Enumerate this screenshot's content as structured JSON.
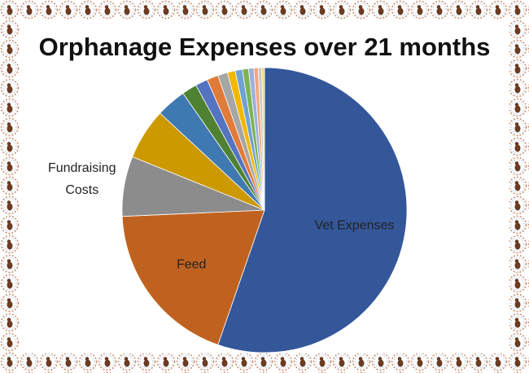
{
  "chart_data": {
    "type": "pie",
    "title": "Orphanage Expenses over 21 months",
    "categories": [
      "Vet Expenses",
      "Feed",
      "Fundraising Costs",
      null,
      null,
      null,
      null,
      null,
      null,
      null,
      null,
      null,
      null,
      null,
      null,
      null
    ],
    "values": [
      55.3,
      19.0,
      6.8,
      5.8,
      3.4,
      1.7,
      1.4,
      1.3,
      1.1,
      0.9,
      0.8,
      0.7,
      0.6,
      0.5,
      0.4,
      0.3
    ],
    "colors": [
      "#34579a",
      "#c0621f",
      "#8c8c8c",
      "#cc9900",
      "#3f79b1",
      "#4f8132",
      "#5473c0",
      "#e07b39",
      "#a6a6a6",
      "#f0b800",
      "#6fa0d6",
      "#7cb354",
      "#9cb0dd",
      "#f1a77b",
      "#c9c9c9",
      "#ffd866"
    ]
  }
}
